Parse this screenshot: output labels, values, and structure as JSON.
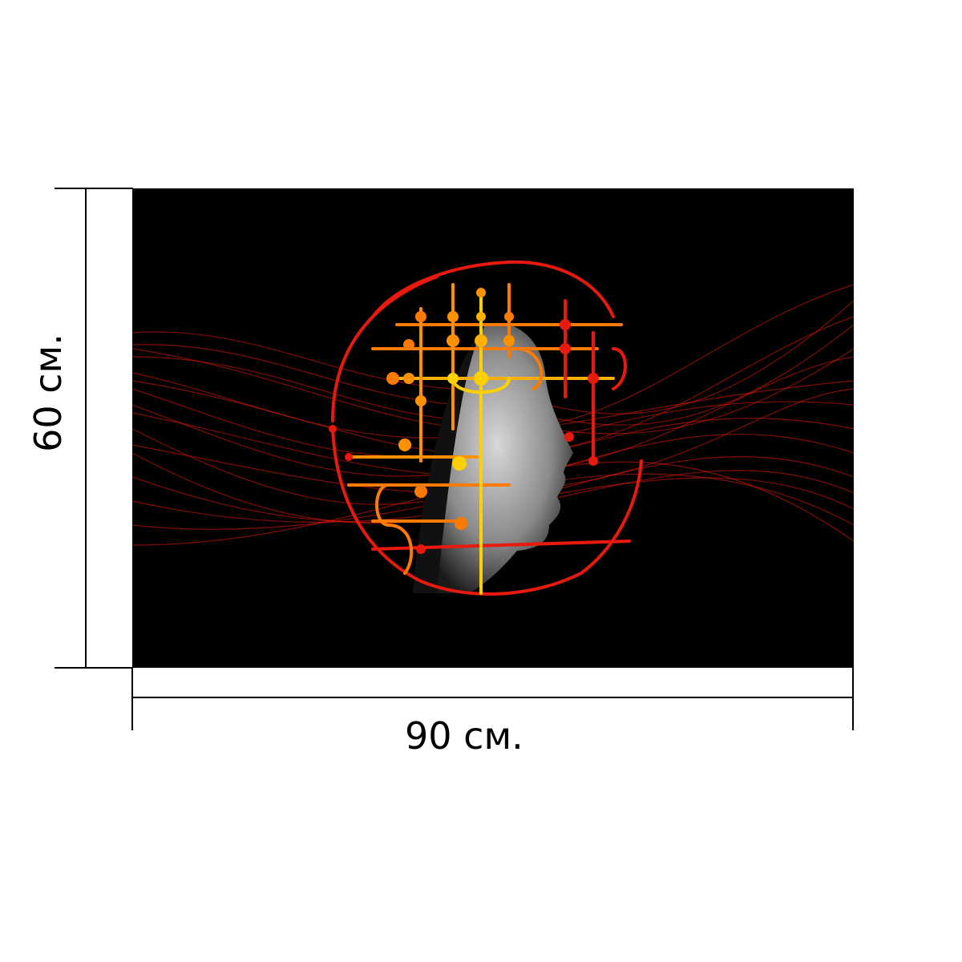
{
  "product": {
    "image_alt": "",
    "width_label": "90 см.",
    "height_label": "60 см."
  },
  "colors": {
    "background": "#000000",
    "accent_red": "#e8190e",
    "accent_orange": "#ff7a00",
    "accent_yellow": "#ffd000"
  }
}
